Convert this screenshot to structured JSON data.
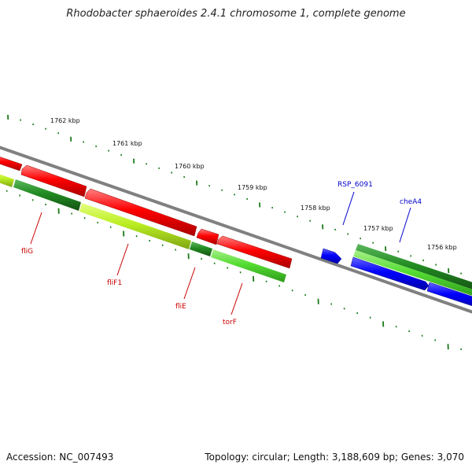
{
  "title": "Rhodobacter sphaeroides 2.4.1 chromosome 1, complete genome",
  "footer": {
    "accession": "Accession: NC_007493",
    "summary": "Topology: circular; Length: 3,188,609 bp; Genes: 3,070"
  },
  "scale_labels": [
    "1762 kbp",
    "1761 kbp",
    "1760 kbp",
    "1759 kbp",
    "1758 kbp",
    "1757 kbp",
    "1756 kbp"
  ],
  "colors": {
    "backbone": "#808080",
    "reverse_gene": "#ff0000",
    "forward_gene": "#0000ff",
    "dark_green": "#228b22",
    "light_green": "#66dd44",
    "yellow_green": "#bbee22",
    "tick": "#1a7a1a",
    "reverse_label": "#cc0000",
    "forward_label": "#0000cc"
  },
  "gene_labels": [
    {
      "name": "fliG",
      "strand": "reverse"
    },
    {
      "name": "fliF1",
      "strand": "reverse"
    },
    {
      "name": "fliE",
      "strand": "reverse"
    },
    {
      "name": "torF",
      "strand": "reverse"
    },
    {
      "name": "RSP_6091",
      "strand": "forward"
    },
    {
      "name": "cheA4",
      "strand": "forward"
    }
  ]
}
